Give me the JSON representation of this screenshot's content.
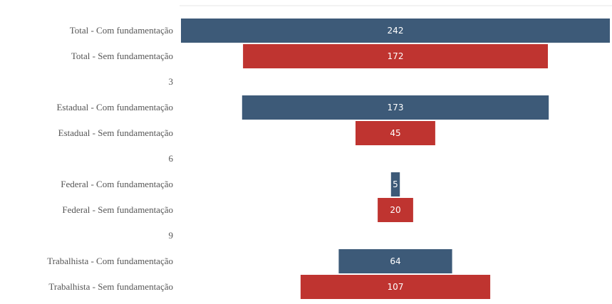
{
  "chart_data": {
    "type": "bar",
    "orientation": "horizontal",
    "layout": "funnel-centered",
    "categories": [
      "Total - Com fundamentação",
      "Total - Sem fundamentação",
      "3",
      "Estadual - Com fundamentação",
      "Estadual - Sem fundamentação",
      "6",
      "Federal - Com fundamentação",
      "Federal - Sem fundamentação",
      "9",
      "Trabalhista - Com fundamentação",
      "Trabalhista - Sem fundamentação"
    ],
    "values": [
      242,
      172,
      null,
      173,
      45,
      null,
      5,
      20,
      null,
      64,
      107
    ],
    "colors": {
      "com": "#3d5a78",
      "sem": "#bf3430"
    },
    "xlim": [
      0,
      242
    ],
    "grid": false,
    "legend": "none",
    "title": "",
    "xlabel": "",
    "ylabel": ""
  }
}
